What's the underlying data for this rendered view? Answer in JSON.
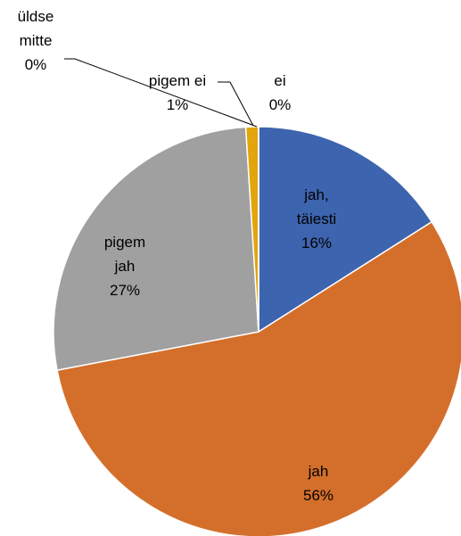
{
  "chart_data": {
    "type": "pie",
    "categories": [
      "jah, täiesti",
      "jah",
      "pigem jah",
      "pigem ei",
      "ei",
      "üldse mitte"
    ],
    "values": [
      16,
      56,
      27,
      1,
      0,
      0
    ],
    "value_labels": [
      "16%",
      "56%",
      "27%",
      "1%",
      "0%",
      "0%"
    ],
    "colors": [
      "#3d64ae",
      "#d46f2b",
      "#a0a0a0",
      "#e3a50c",
      "#5b9bd5",
      "#70ad47"
    ]
  }
}
